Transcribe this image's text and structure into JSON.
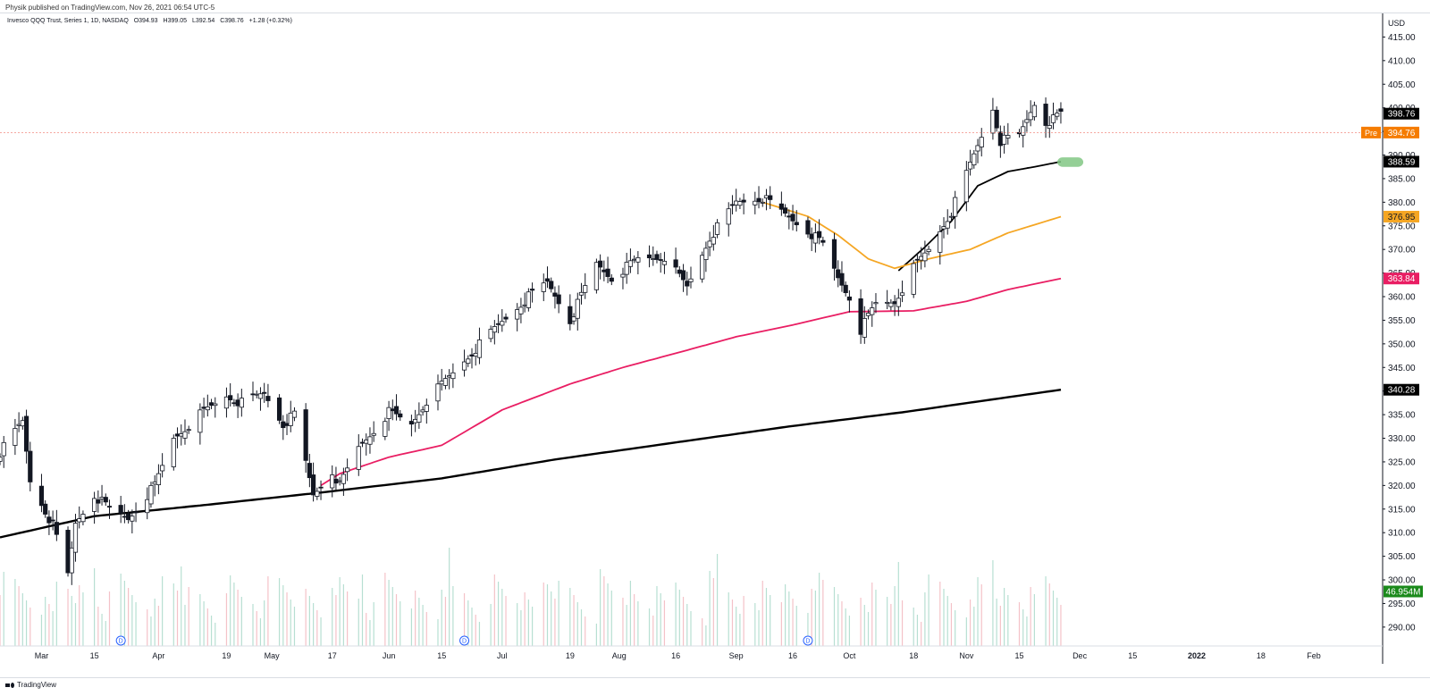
{
  "header": {
    "publisher": "Physik published on TradingView.com, Nov 26, 2021 06:54 UTC-5",
    "symbol": "Invesco QQQ Trust, Series 1, 1D, NASDAQ",
    "open": "O394.93",
    "high": "H399.05",
    "low": "L392.54",
    "close": "C398.76",
    "change": "+1.28 (+0.32%)",
    "currency": "USD"
  },
  "footer": {
    "logo_text": "TradingView"
  },
  "colors": {
    "ema_fast": "#000000",
    "ema_mid": "#f5a623",
    "ema_slow": "#e91e63",
    "sma_long": "#000000",
    "pre_market": "#f57c00",
    "volume_badge": "#1b8a1b",
    "highlight": "#81c784"
  },
  "chart_data": {
    "type": "candlestick",
    "symbol": "QQQ",
    "interval": "1D",
    "ylim": [
      286,
      420
    ],
    "y_ticks": [
      290,
      295,
      300,
      305,
      310,
      315,
      320,
      325,
      330,
      335,
      340,
      345,
      350,
      355,
      360,
      365,
      370,
      375,
      380,
      385,
      390,
      395,
      400,
      405,
      410,
      415
    ],
    "y_tick_labels": [
      "290.00",
      "295.00",
      "300.00",
      "305.00",
      "310.00",
      "315.00",
      "320.00",
      "325.00",
      "330.00",
      "335.00",
      "340.00",
      "345.00",
      "350.00",
      "355.00",
      "360.00",
      "365.00",
      "370.00",
      "375.00",
      "380.00",
      "385.00",
      "390.00",
      "395.00",
      "400.00",
      "405.00",
      "410.00",
      "415.00"
    ],
    "x_range": [
      "2021-02-18",
      "2022-02-19"
    ],
    "x_ticks": [
      {
        "date": "2021-03-01",
        "label": "Mar"
      },
      {
        "date": "2021-03-15",
        "label": "15"
      },
      {
        "date": "2021-04-01",
        "label": "Apr"
      },
      {
        "date": "2021-04-19",
        "label": "19"
      },
      {
        "date": "2021-05-01",
        "label": "May"
      },
      {
        "date": "2021-05-17",
        "label": "17"
      },
      {
        "date": "2021-06-01",
        "label": "Jun"
      },
      {
        "date": "2021-06-15",
        "label": "15"
      },
      {
        "date": "2021-07-01",
        "label": "Jul"
      },
      {
        "date": "2021-07-19",
        "label": "19"
      },
      {
        "date": "2021-08-01",
        "label": "Aug"
      },
      {
        "date": "2021-08-16",
        "label": "16"
      },
      {
        "date": "2021-09-01",
        "label": "Sep"
      },
      {
        "date": "2021-09-16",
        "label": "16"
      },
      {
        "date": "2021-10-01",
        "label": "Oct"
      },
      {
        "date": "2021-10-18",
        "label": "18"
      },
      {
        "date": "2021-11-01",
        "label": "Nov"
      },
      {
        "date": "2021-11-15",
        "label": "15"
      },
      {
        "date": "2021-12-01",
        "label": "Dec"
      },
      {
        "date": "2021-12-15",
        "label": "15"
      },
      {
        "date": "2022-01-01",
        "label": "2022"
      },
      {
        "date": "2022-01-18",
        "label": "18"
      },
      {
        "date": "2022-02-01",
        "label": "Feb"
      }
    ],
    "close_anchors": [
      [
        "2021-02-18",
        327.0
      ],
      [
        "2021-02-24",
        333.5
      ],
      [
        "2021-02-26",
        321.0
      ],
      [
        "2021-03-04",
        311.5
      ],
      [
        "2021-03-08",
        301.0
      ],
      [
        "2021-03-10",
        312.0
      ],
      [
        "2021-03-15",
        318.0
      ],
      [
        "2021-03-19",
        315.0
      ],
      [
        "2021-03-24",
        313.0
      ],
      [
        "2021-03-31",
        320.0
      ],
      [
        "2021-04-05",
        330.0
      ],
      [
        "2021-04-12",
        335.0
      ],
      [
        "2021-04-19",
        339.0
      ],
      [
        "2021-04-23",
        337.5
      ],
      [
        "2021-04-29",
        339.5
      ],
      [
        "2021-05-04",
        333.0
      ],
      [
        "2021-05-07",
        335.0
      ],
      [
        "2021-05-12",
        318.0
      ],
      [
        "2021-05-17",
        323.0
      ],
      [
        "2021-05-19",
        320.0
      ],
      [
        "2021-05-24",
        328.0
      ],
      [
        "2021-06-01",
        335.5
      ],
      [
        "2021-06-07",
        333.0
      ],
      [
        "2021-06-11",
        338.0
      ],
      [
        "2021-06-17",
        343.0
      ],
      [
        "2021-06-24",
        349.0
      ],
      [
        "2021-06-30",
        354.0
      ],
      [
        "2021-07-08",
        360.0
      ],
      [
        "2021-07-13",
        363.0
      ],
      [
        "2021-07-19",
        355.0
      ],
      [
        "2021-07-26",
        367.0
      ],
      [
        "2021-07-30",
        364.0
      ],
      [
        "2021-08-06",
        368.0
      ],
      [
        "2021-08-13",
        368.5
      ],
      [
        "2021-08-19",
        362.0
      ],
      [
        "2021-08-25",
        372.5
      ],
      [
        "2021-09-01",
        380.0
      ],
      [
        "2021-09-08",
        381.0
      ],
      [
        "2021-09-13",
        378.0
      ],
      [
        "2021-09-20",
        374.0
      ],
      [
        "2021-09-24",
        371.0
      ],
      [
        "2021-09-28",
        364.0
      ],
      [
        "2021-10-01",
        360.0
      ],
      [
        "2021-10-04",
        353.0
      ],
      [
        "2021-10-08",
        358.5
      ],
      [
        "2021-10-13",
        359.0
      ],
      [
        "2021-10-18",
        366.0
      ],
      [
        "2021-10-22",
        370.0
      ],
      [
        "2021-10-28",
        378.0
      ],
      [
        "2021-11-03",
        390.0
      ],
      [
        "2021-11-08",
        400.0
      ],
      [
        "2021-11-10",
        393.0
      ],
      [
        "2021-11-15",
        394.0
      ],
      [
        "2021-11-19",
        401.0
      ],
      [
        "2021-11-22",
        397.0
      ],
      [
        "2021-11-24",
        397.5
      ],
      [
        "2021-11-26",
        398.76
      ]
    ],
    "indicators": [
      {
        "type": "moving-average",
        "color": "#000000",
        "last_value": 388.59,
        "start_date": "2021-10-14",
        "anchors": [
          [
            "2021-10-14",
            365.5
          ],
          [
            "2021-10-21",
            370.5
          ],
          [
            "2021-10-28",
            376.0
          ],
          [
            "2021-11-04",
            383.5
          ],
          [
            "2021-11-12",
            386.5
          ],
          [
            "2021-11-19",
            387.5
          ],
          [
            "2021-11-26",
            388.59
          ]
        ]
      },
      {
        "type": "moving-average",
        "color": "#f5a623",
        "last_value": 376.95,
        "start_date": "2021-09-08",
        "anchors": [
          [
            "2021-09-08",
            380.0
          ],
          [
            "2021-09-20",
            377.0
          ],
          [
            "2021-09-28",
            373.0
          ],
          [
            "2021-10-06",
            368.0
          ],
          [
            "2021-10-13",
            366.0
          ],
          [
            "2021-10-22",
            368.0
          ],
          [
            "2021-11-02",
            370.0
          ],
          [
            "2021-11-12",
            373.5
          ],
          [
            "2021-11-26",
            376.95
          ]
        ]
      },
      {
        "type": "moving-average",
        "color": "#e91e63",
        "last_value": 363.84,
        "start_date": "2021-05-14",
        "anchors": [
          [
            "2021-05-14",
            320.0
          ],
          [
            "2021-05-19",
            322.5
          ],
          [
            "2021-06-01",
            326.0
          ],
          [
            "2021-06-15",
            328.5
          ],
          [
            "2021-07-01",
            336.0
          ],
          [
            "2021-07-19",
            341.5
          ],
          [
            "2021-08-02",
            345.0
          ],
          [
            "2021-08-16",
            348.0
          ],
          [
            "2021-09-01",
            351.5
          ],
          [
            "2021-09-16",
            354.0
          ],
          [
            "2021-10-01",
            356.8
          ],
          [
            "2021-10-18",
            357.0
          ],
          [
            "2021-11-01",
            359.0
          ],
          [
            "2021-11-12",
            361.5
          ],
          [
            "2021-11-26",
            363.84
          ]
        ]
      },
      {
        "type": "moving-average",
        "color": "#000000",
        "last_value": 340.28,
        "start_date": "2021-02-18",
        "thick": true,
        "anchors": [
          [
            "2021-02-18",
            309.0
          ],
          [
            "2021-03-15",
            313.5
          ],
          [
            "2021-04-15",
            316.0
          ],
          [
            "2021-05-14",
            318.5
          ],
          [
            "2021-06-15",
            321.5
          ],
          [
            "2021-07-15",
            325.5
          ],
          [
            "2021-08-15",
            329.0
          ],
          [
            "2021-09-15",
            332.5
          ],
          [
            "2021-10-15",
            335.5
          ],
          [
            "2021-11-26",
            340.28
          ]
        ]
      }
    ],
    "price_labels": [
      {
        "value": 398.76,
        "text": "398.76",
        "bg": "#000000",
        "fg": "#ffffff"
      },
      {
        "value": 394.76,
        "text": "394.76",
        "bg": "#f57c00",
        "fg": "#ffffff",
        "tag": "Pre"
      },
      {
        "value": 388.59,
        "text": "388.59",
        "bg": "#000000",
        "fg": "#ffffff"
      },
      {
        "value": 376.95,
        "text": "376.95",
        "bg": "#f5a623",
        "fg": "#131722"
      },
      {
        "value": 363.84,
        "text": "363.84",
        "bg": "#e91e63",
        "fg": "#ffffff"
      },
      {
        "value": 340.28,
        "text": "340.28",
        "bg": "#000000",
        "fg": "#ffffff"
      }
    ],
    "pre_market_line": 394.76,
    "volume": {
      "last_text": "46.954M",
      "badge_color": "#1b8a1b"
    },
    "dividend_markers": [
      {
        "date": "2021-03-22",
        "label": "D"
      },
      {
        "date": "2021-06-21",
        "label": "D"
      },
      {
        "date": "2021-09-20",
        "label": "D"
      }
    ],
    "highlight_zone": {
      "date_start": "2021-11-26",
      "date_end": "2021-12-01",
      "y_low": 387.5,
      "y_high": 389.5
    },
    "grid": false,
    "legend": "top-left"
  }
}
